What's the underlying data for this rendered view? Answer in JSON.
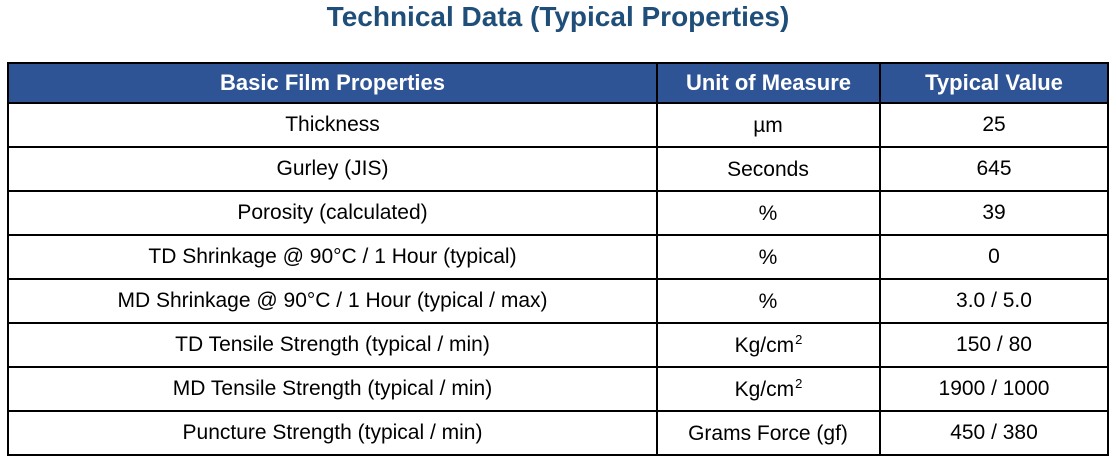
{
  "title": "Technical Data (Typical Properties)",
  "table": {
    "headers": [
      "Basic Film Properties",
      "Unit of Measure",
      "Typical Value"
    ],
    "rows": [
      {
        "property": "Thickness",
        "unit": "µm",
        "unit_sup": "",
        "value": "25"
      },
      {
        "property": "Gurley (JIS)",
        "unit": "Seconds",
        "unit_sup": "",
        "value": "645"
      },
      {
        "property": "Porosity (calculated)",
        "unit": "%",
        "unit_sup": "",
        "value": "39"
      },
      {
        "property": "TD Shrinkage @ 90°C / 1 Hour (typical)",
        "unit": "%",
        "unit_sup": "",
        "value": "0"
      },
      {
        "property": "MD Shrinkage @ 90°C / 1 Hour (typical / max)",
        "unit": "%",
        "unit_sup": "",
        "value": "3.0 / 5.0"
      },
      {
        "property": "TD Tensile Strength (typical / min)",
        "unit": "Kg/cm",
        "unit_sup": "2",
        "value": "150 / 80"
      },
      {
        "property": "MD Tensile Strength (typical / min)",
        "unit": "Kg/cm",
        "unit_sup": "2",
        "value": "1900 / 1000"
      },
      {
        "property": "Puncture Strength (typical / min)",
        "unit": "Grams Force (gf)",
        "unit_sup": "",
        "value": "450 / 380"
      }
    ]
  },
  "colors": {
    "title": "#1f4e79",
    "header_bg": "#2f5496",
    "header_text": "#ffffff",
    "border": "#000000"
  }
}
